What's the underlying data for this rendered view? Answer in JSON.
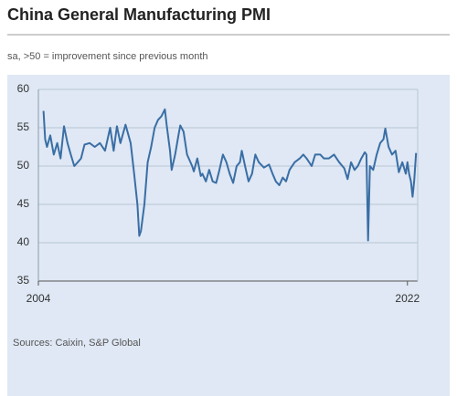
{
  "chart_data": {
    "type": "line",
    "title": "China General Manufacturing PMI",
    "subtitle": "sa, >50 = improvement since previous month",
    "source": "Sources: Caixin, S&P Global",
    "x": [
      2004.25,
      2004.33,
      2004.42,
      2004.58,
      2004.75,
      2004.92,
      2005.08,
      2005.25,
      2005.42,
      2005.58,
      2005.75,
      2005.92,
      2006.08,
      2006.25,
      2006.5,
      2006.75,
      2007.0,
      2007.25,
      2007.5,
      2007.67,
      2007.83,
      2008.0,
      2008.25,
      2008.5,
      2008.67,
      2008.83,
      2008.92,
      2009.0,
      2009.17,
      2009.33,
      2009.5,
      2009.67,
      2009.83,
      2010.0,
      2010.17,
      2010.25,
      2010.42,
      2010.5,
      2010.67,
      2010.83,
      2010.92,
      2011.08,
      2011.25,
      2011.5,
      2011.58,
      2011.75,
      2011.92,
      2012.0,
      2012.17,
      2012.33,
      2012.5,
      2012.67,
      2012.83,
      2013.0,
      2013.17,
      2013.33,
      2013.5,
      2013.67,
      2013.83,
      2013.92,
      2014.08,
      2014.25,
      2014.42,
      2014.58,
      2014.75,
      2015.0,
      2015.25,
      2015.42,
      2015.58,
      2015.75,
      2015.92,
      2016.08,
      2016.25,
      2016.5,
      2016.75,
      2016.92,
      2017.08,
      2017.33,
      2017.5,
      2017.75,
      2017.92,
      2018.17,
      2018.42,
      2018.67,
      2018.92,
      2019.08,
      2019.25,
      2019.42,
      2019.58,
      2019.75,
      2019.92,
      2020.0,
      2020.08,
      2020.17,
      2020.33,
      2020.5,
      2020.67,
      2020.83,
      2020.92,
      2021.08,
      2021.25,
      2021.42,
      2021.58,
      2021.75,
      2021.92,
      2022.0,
      2022.08,
      2022.17,
      2022.25,
      2022.33,
      2022.42
    ],
    "series": [
      {
        "color": "#3a6ea5",
        "values": [
          57.2,
          53.5,
          52.5,
          54.0,
          51.5,
          53.0,
          51.0,
          55.2,
          53.0,
          51.5,
          50.0,
          50.5,
          51.0,
          52.8,
          53.0,
          52.5,
          53.0,
          52.0,
          55.0,
          52.0,
          55.2,
          53.0,
          55.4,
          53.0,
          49.0,
          45.0,
          40.9,
          41.5,
          45.0,
          50.5,
          52.5,
          55.0,
          56.0,
          56.5,
          57.4,
          55.5,
          52.0,
          49.5,
          51.5,
          54.0,
          55.3,
          54.5,
          51.5,
          50.0,
          49.3,
          51.0,
          48.7,
          49.0,
          48.0,
          49.5,
          48.0,
          47.8,
          49.5,
          51.5,
          50.5,
          49.0,
          47.8,
          50.0,
          50.5,
          52.0,
          50.0,
          48.0,
          49.0,
          51.5,
          50.5,
          49.8,
          50.2,
          49.0,
          48.0,
          47.5,
          48.5,
          48.0,
          49.5,
          50.5,
          51.0,
          51.5,
          51.0,
          50.0,
          51.5,
          51.5,
          51.0,
          51.0,
          51.5,
          50.5,
          49.7,
          48.3,
          50.5,
          49.5,
          50.0,
          51.0,
          51.8,
          51.5,
          40.3,
          50.0,
          49.5,
          51.5,
          53.0,
          53.5,
          54.9,
          52.5,
          51.5,
          52.0,
          49.2,
          50.5,
          49.0,
          50.5,
          49.0,
          48.0,
          46.0,
          48.1,
          51.7
        ]
      }
    ],
    "xlim": [
      2004,
      2022.5
    ],
    "xticks": [
      2004,
      2022
    ],
    "ylim": [
      35,
      60
    ],
    "yticks": [
      35,
      40,
      45,
      50,
      55,
      60
    ],
    "grid": true
  }
}
